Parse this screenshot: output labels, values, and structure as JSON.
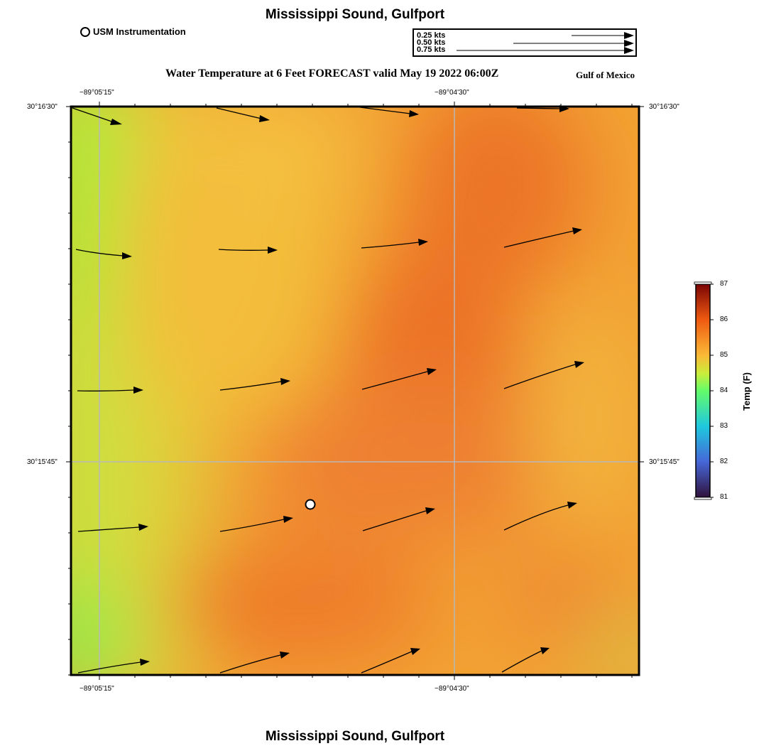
{
  "header": {
    "title": "Mississippi Sound, Gulfport",
    "forecast_title": "Water Temperature at 6 Feet FORECAST valid May 19 2022 06:00Z",
    "region_label": "Gulf of Mexico",
    "instrument_legend": "USM Instrumentation"
  },
  "footer": {
    "title": "Mississippi Sound, Gulfport"
  },
  "scale_legend": {
    "entries": [
      {
        "label": "0.25 kts",
        "speed_kts": 0.25
      },
      {
        "label": "0.50 kts",
        "speed_kts": 0.5
      },
      {
        "label": "0.75 kts",
        "speed_kts": 0.75
      }
    ]
  },
  "map": {
    "longitude_labels": [
      "−89°05'15\"",
      "−89°04'30\""
    ],
    "latitude_labels": [
      "30°16'30\"",
      "30°15'45\""
    ],
    "colors": {
      "frame": "#000000",
      "grid": "#b8b8b8",
      "arrow": "#000000",
      "station_fill": "#ffffff"
    }
  },
  "colorbar": {
    "title": "Temp (F)",
    "ticks": [
      "87",
      "86",
      "85",
      "84",
      "83",
      "82",
      "81"
    ],
    "range_f": [
      81,
      87
    ],
    "stops": [
      {
        "t": 81,
        "color": "#30123b"
      },
      {
        "t": 82,
        "color": "#4667d8"
      },
      {
        "t": 83,
        "color": "#1fc8de"
      },
      {
        "t": 84,
        "color": "#64fc6a"
      },
      {
        "t": 84.5,
        "color": "#c9ee3a"
      },
      {
        "t": 85,
        "color": "#fbb937"
      },
      {
        "t": 86,
        "color": "#ef5a11"
      },
      {
        "t": 87,
        "color": "#7a0403"
      }
    ]
  }
}
